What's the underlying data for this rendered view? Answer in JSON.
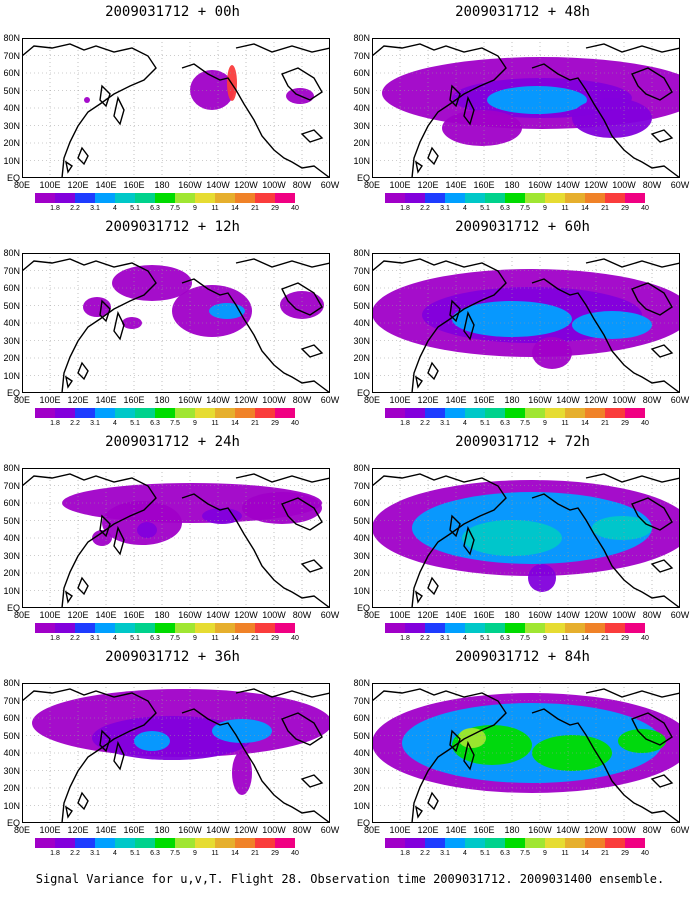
{
  "latitude_labels": [
    "80N",
    "70N",
    "60N",
    "50N",
    "40N",
    "30N",
    "20N",
    "10N",
    "EQ"
  ],
  "longitude_labels": [
    "80E",
    "100E",
    "120E",
    "140E",
    "160E",
    "180",
    "160W",
    "140W",
    "120W",
    "100W",
    "80W",
    "60W"
  ],
  "colorbar": {
    "labels": [
      "1.8",
      "2.2",
      "3.1",
      "4",
      "5.1",
      "6.3",
      "7.5",
      "9",
      "11",
      "14",
      "21",
      "29",
      "40"
    ],
    "colors": [
      "#a000c8",
      "#8200dc",
      "#1e3cff",
      "#00a0ff",
      "#00c8c8",
      "#00d28c",
      "#00dc00",
      "#a0e632",
      "#e6dc32",
      "#e6af2d",
      "#f08228",
      "#fa3c3c",
      "#f00082"
    ]
  },
  "panels": [
    {
      "title": "2009031712 + 00h",
      "lead": 0
    },
    {
      "title": "2009031712 + 48h",
      "lead": 48
    },
    {
      "title": "2009031712 + 12h",
      "lead": 12
    },
    {
      "title": "2009031712 + 60h",
      "lead": 60
    },
    {
      "title": "2009031712 + 24h",
      "lead": 24
    },
    {
      "title": "2009031712 + 72h",
      "lead": 72
    },
    {
      "title": "2009031712 + 36h",
      "lead": 36
    },
    {
      "title": "2009031712 + 84h",
      "lead": 84
    }
  ],
  "caption": "Signal Variance for u,v,T. Flight 28. Observation time 2009031712. 2009031400 ensemble."
}
